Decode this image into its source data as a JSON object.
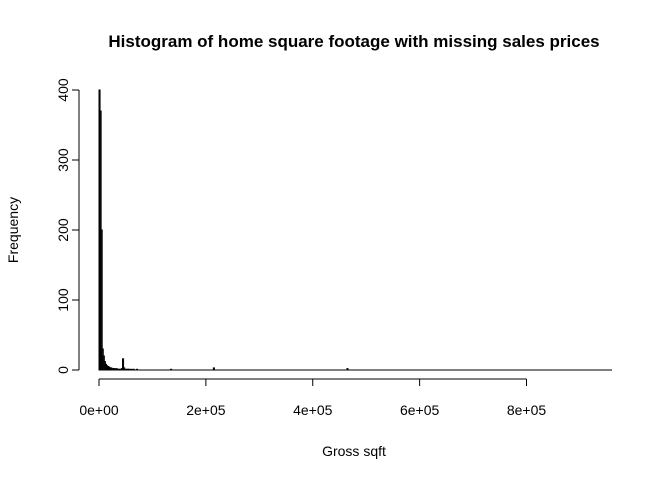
{
  "chart_data": {
    "type": "bar",
    "title": "Histogram of home square footage with missing sales prices",
    "xlabel": "Gross sqft",
    "ylabel": "Frequency",
    "xlim": [
      0,
      960000
    ],
    "ylim": [
      0,
      400
    ],
    "bin_width": 2000,
    "x_ticks": [
      0,
      200000,
      400000,
      600000,
      800000
    ],
    "x_tick_labels": [
      "0e+00",
      "2e+05",
      "4e+05",
      "6e+05",
      "8e+05"
    ],
    "y_ticks": [
      0,
      100,
      200,
      300,
      400
    ],
    "y_tick_labels": [
      "0",
      "100",
      "200",
      "300",
      "400"
    ],
    "bins": [
      {
        "x0": 0,
        "x1": 2000,
        "count": 400
      },
      {
        "x0": 2000,
        "x1": 4000,
        "count": 370
      },
      {
        "x0": 4000,
        "x1": 6000,
        "count": 200
      },
      {
        "x0": 6000,
        "x1": 8000,
        "count": 30
      },
      {
        "x0": 8000,
        "x1": 10000,
        "count": 20
      },
      {
        "x0": 10000,
        "x1": 12000,
        "count": 12
      },
      {
        "x0": 12000,
        "x1": 14000,
        "count": 8
      },
      {
        "x0": 14000,
        "x1": 16000,
        "count": 6
      },
      {
        "x0": 16000,
        "x1": 18000,
        "count": 5
      },
      {
        "x0": 18000,
        "x1": 20000,
        "count": 4
      },
      {
        "x0": 20000,
        "x1": 22000,
        "count": 3
      },
      {
        "x0": 22000,
        "x1": 24000,
        "count": 3
      },
      {
        "x0": 24000,
        "x1": 26000,
        "count": 2
      },
      {
        "x0": 26000,
        "x1": 28000,
        "count": 2
      },
      {
        "x0": 28000,
        "x1": 30000,
        "count": 2
      },
      {
        "x0": 30000,
        "x1": 32000,
        "count": 1
      },
      {
        "x0": 32000,
        "x1": 34000,
        "count": 2
      },
      {
        "x0": 34000,
        "x1": 36000,
        "count": 1
      },
      {
        "x0": 36000,
        "x1": 38000,
        "count": 1
      },
      {
        "x0": 38000,
        "x1": 40000,
        "count": 1
      },
      {
        "x0": 40000,
        "x1": 42000,
        "count": 1
      },
      {
        "x0": 42000,
        "x1": 44000,
        "count": 2
      },
      {
        "x0": 44000,
        "x1": 46000,
        "count": 16
      },
      {
        "x0": 46000,
        "x1": 48000,
        "count": 3
      },
      {
        "x0": 48000,
        "x1": 50000,
        "count": 1
      },
      {
        "x0": 50000,
        "x1": 52000,
        "count": 1
      },
      {
        "x0": 52000,
        "x1": 54000,
        "count": 1
      },
      {
        "x0": 54000,
        "x1": 56000,
        "count": 1
      },
      {
        "x0": 56000,
        "x1": 58000,
        "count": 1
      },
      {
        "x0": 60000,
        "x1": 62000,
        "count": 1
      },
      {
        "x0": 64000,
        "x1": 66000,
        "count": 1
      },
      {
        "x0": 70000,
        "x1": 72000,
        "count": 1
      },
      {
        "x0": 134000,
        "x1": 136000,
        "count": 1
      },
      {
        "x0": 214000,
        "x1": 216000,
        "count": 3
      },
      {
        "x0": 464000,
        "x1": 466000,
        "count": 2
      }
    ]
  }
}
